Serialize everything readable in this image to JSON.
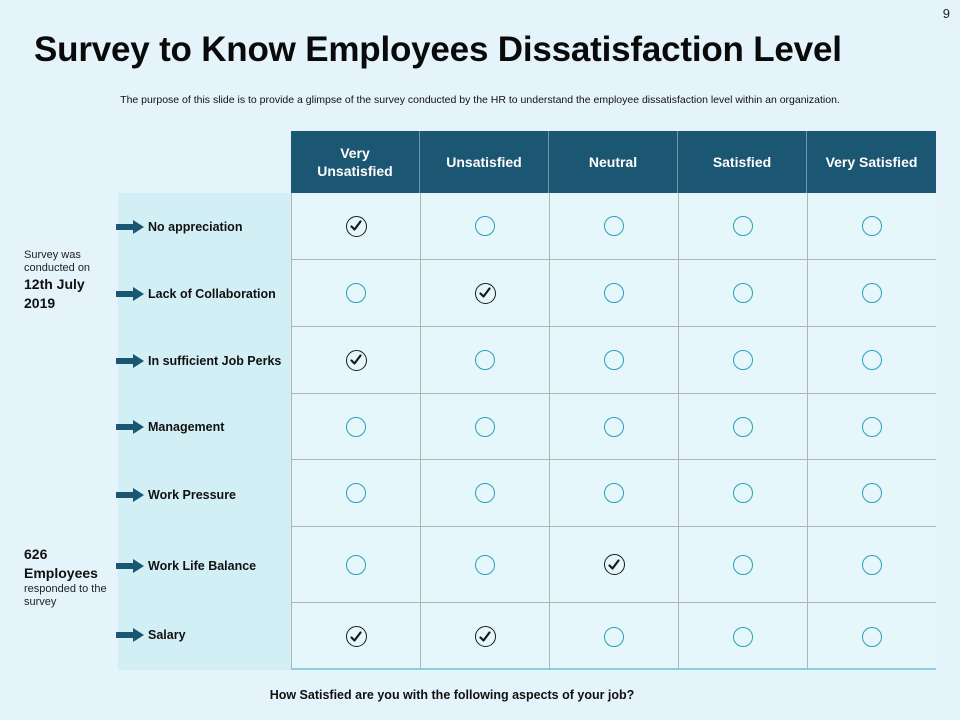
{
  "page_number": "9",
  "title": "Survey to Know Employees Dissatisfaction Level",
  "subtitle": "The purpose of this slide is to provide a glimpse of the survey conducted by the HR to understand the employee dissatisfaction level within an organization.",
  "side_info": {
    "survey_intro": "Survey was conducted on",
    "survey_date": "12th July 2019",
    "employees_count": "626 Employees",
    "employees_caption": "responded to the survey"
  },
  "columns": [
    "Very Unsatisfied",
    "Unsatisfied",
    "Neutral",
    "Satisfied",
    "Very Satisfied"
  ],
  "rows": [
    {
      "label": "No appreciation",
      "checked": [
        true,
        false,
        false,
        false,
        false
      ]
    },
    {
      "label": "Lack of Collaboration",
      "checked": [
        false,
        true,
        false,
        false,
        false
      ]
    },
    {
      "label": "In sufficient Job Perks",
      "checked": [
        true,
        false,
        false,
        false,
        false
      ]
    },
    {
      "label": "Management",
      "checked": [
        false,
        false,
        false,
        false,
        false
      ]
    },
    {
      "label": "Work Pressure",
      "checked": [
        false,
        false,
        false,
        false,
        false
      ]
    },
    {
      "label": "Work Life Balance",
      "checked": [
        false,
        false,
        true,
        false,
        false
      ]
    },
    {
      "label": "Salary",
      "checked": [
        true,
        true,
        false,
        false,
        false
      ]
    }
  ],
  "footer_question": "How Satisfied are you with the following aspects of your job?",
  "colors": {
    "header_bg": "#1b5673",
    "circle": "#2a9fbb",
    "arrow": "#1b5673",
    "check": "#1a1a1a"
  }
}
